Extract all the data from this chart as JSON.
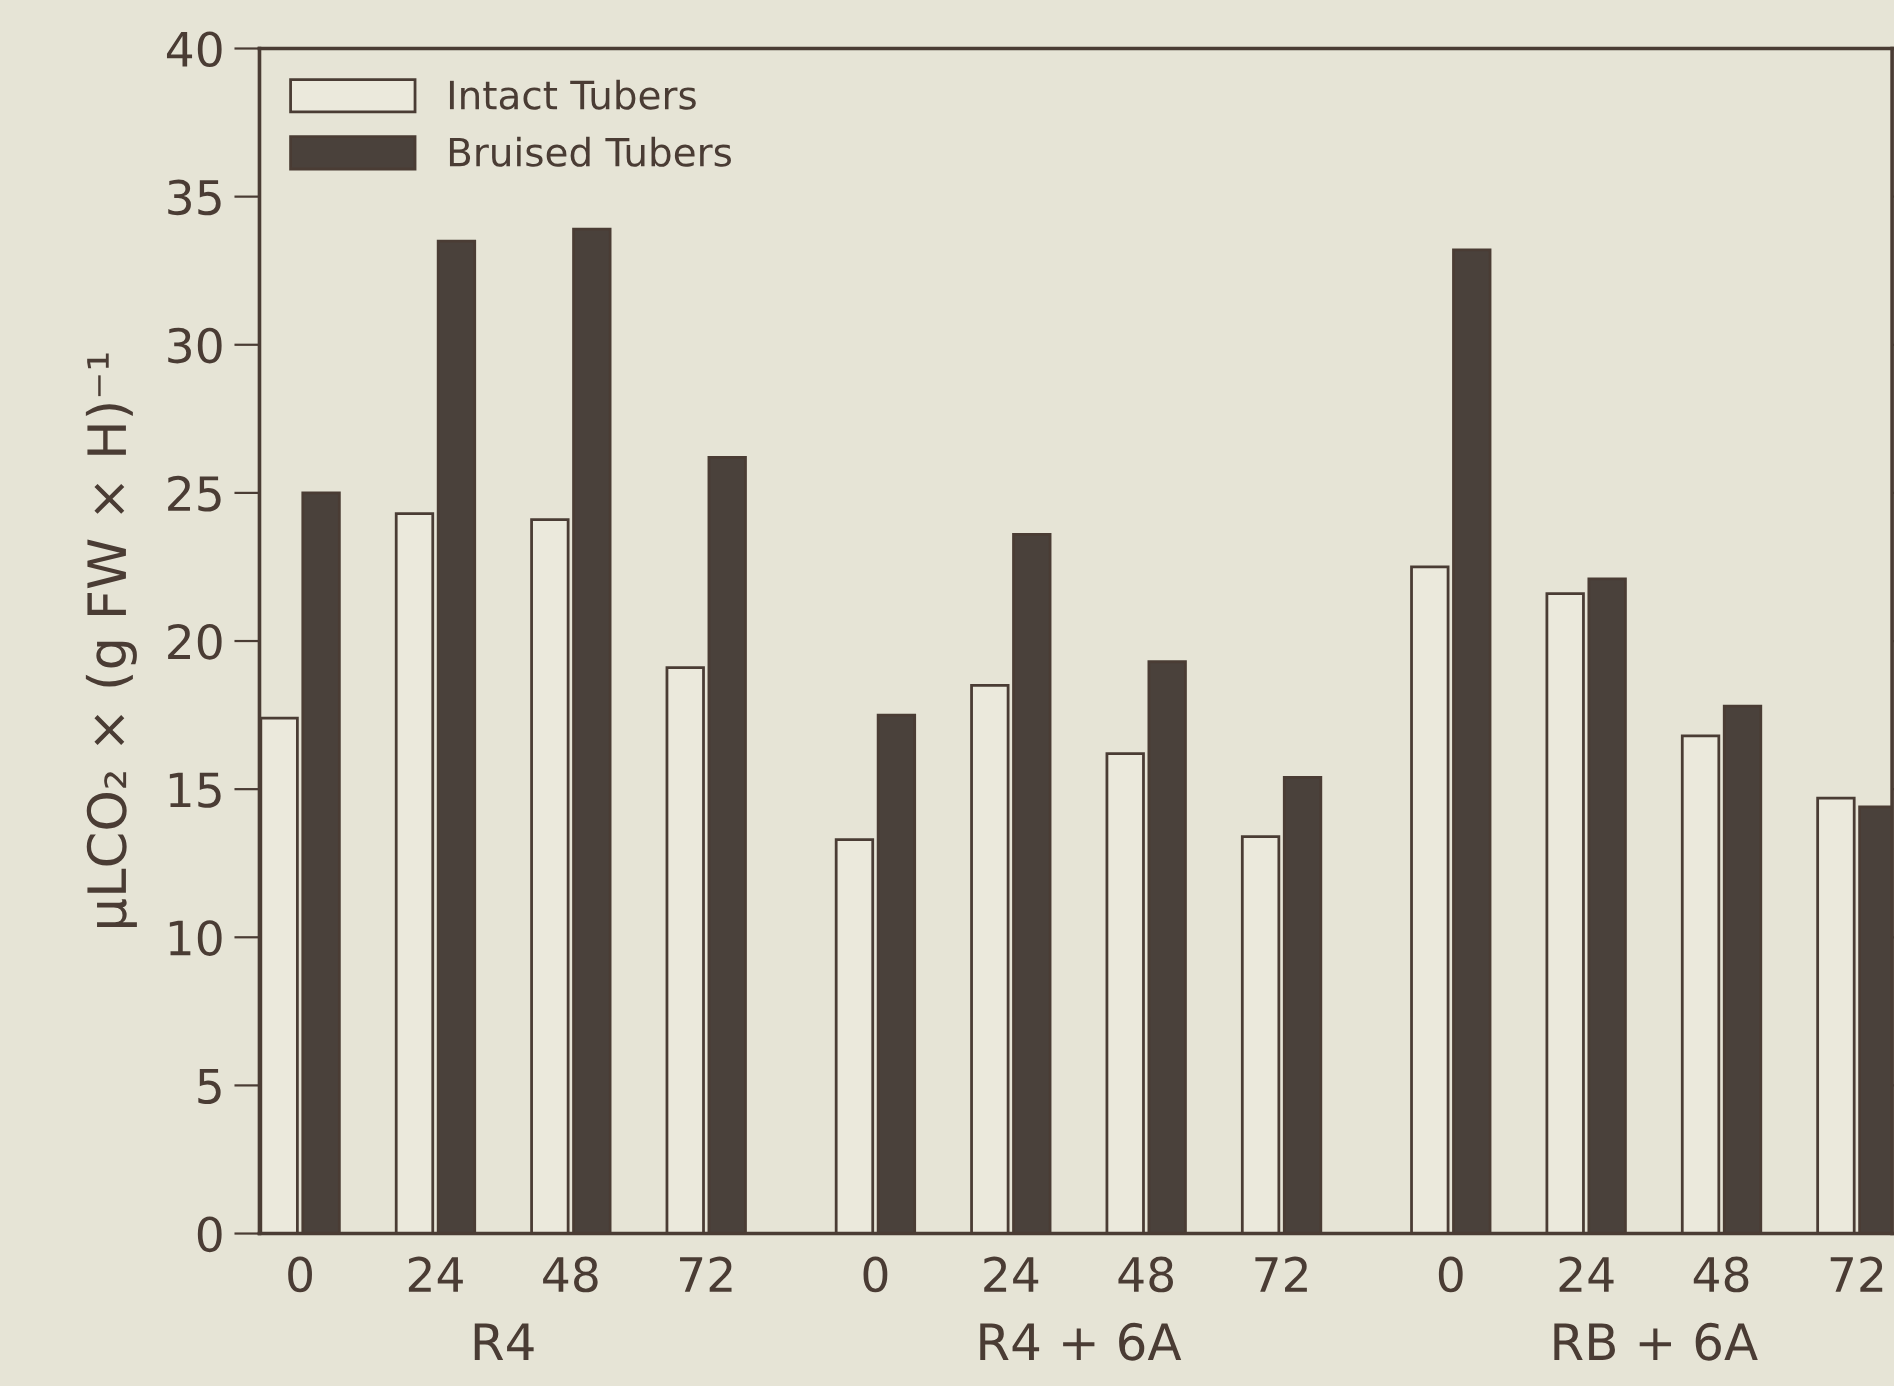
{
  "chart_data": {
    "type": "bar",
    "ylabel": "μLCO₂ × (g FW × H)⁻¹",
    "categories": [
      "0",
      "24",
      "48",
      "72",
      "0",
      "24",
      "48",
      "72",
      "0",
      "24",
      "48",
      "72"
    ],
    "series": [
      {
        "name": "Intact Tubers",
        "color": "#ebe9dc",
        "values": [
          17.4,
          24.3,
          24.1,
          19.1,
          13.3,
          18.5,
          16.2,
          13.4,
          22.5,
          21.6,
          16.8,
          14.7
        ]
      },
      {
        "name": "Bruised Tubers",
        "color": "#4a413b",
        "values": [
          25.0,
          33.5,
          33.9,
          26.2,
          17.5,
          23.6,
          19.3,
          15.4,
          33.2,
          22.1,
          17.8,
          14.4
        ]
      }
    ],
    "annotations": [
      "R4",
      "R4 + 6A",
      "RB + 6A"
    ],
    "ylim": [
      0,
      40
    ],
    "yticks": [
      0,
      5,
      10,
      15,
      20,
      25,
      30,
      35,
      40
    ],
    "grid": false,
    "legend": "top left"
  }
}
